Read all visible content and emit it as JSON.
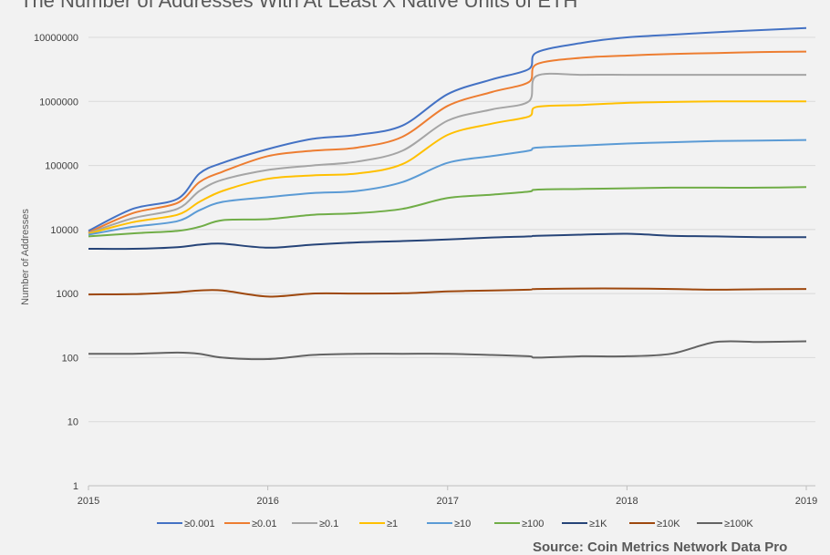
{
  "chart_data": {
    "type": "line",
    "title": "The Number of Addresses With At Least X Native Units of ETH",
    "ylabel": "Number of Addresses",
    "xlabel": "",
    "y_scale": "log",
    "ylim": [
      1,
      10000000
    ],
    "y_ticks": [
      "1",
      "10",
      "100",
      "1000",
      "10000",
      "100000",
      "1000000",
      "10000000"
    ],
    "xlim": [
      "2015-01-01",
      "2019-01-01"
    ],
    "x_ticks": [
      "2015",
      "2016",
      "2017",
      "2018",
      "2019"
    ],
    "legend_position": "bottom",
    "grid": true,
    "x": [
      "2015-01-01",
      "2015-04-01",
      "2015-07-01",
      "2015-08-15",
      "2015-10-01",
      "2016-01-01",
      "2016-04-01",
      "2016-07-01",
      "2016-10-01",
      "2017-01-01",
      "2017-04-01",
      "2017-06-15",
      "2017-07-01",
      "2017-10-01",
      "2018-01-01",
      "2018-04-01",
      "2018-07-01",
      "2018-10-01",
      "2019-01-01"
    ],
    "series": [
      {
        "name": "≥0.001",
        "color": "#4472c4",
        "values": [
          9500,
          21000,
          30000,
          75000,
          110000,
          180000,
          260000,
          300000,
          420000,
          1300000,
          2200000,
          3200000,
          5800000,
          8200000,
          10000000,
          11000000,
          12000000,
          13000000,
          14000000
        ]
      },
      {
        "name": "≥0.01",
        "color": "#ed7d31",
        "values": [
          9000,
          18000,
          26000,
          55000,
          80000,
          140000,
          170000,
          190000,
          280000,
          850000,
          1400000,
          2000000,
          3800000,
          4800000,
          5200000,
          5500000,
          5700000,
          5900000,
          6000000
        ]
      },
      {
        "name": "≥0.1",
        "color": "#a5a5a5",
        "values": [
          8800,
          15000,
          21000,
          40000,
          60000,
          85000,
          100000,
          115000,
          170000,
          500000,
          750000,
          1000000,
          2500000,
          2600000,
          2600000,
          2600000,
          2600000,
          2600000,
          2600000
        ]
      },
      {
        "name": "≥1",
        "color": "#ffc000",
        "values": [
          8600,
          13000,
          17000,
          27000,
          40000,
          62000,
          70000,
          75000,
          105000,
          300000,
          450000,
          580000,
          820000,
          880000,
          950000,
          980000,
          1000000,
          1000000,
          1000000
        ]
      },
      {
        "name": "≥10",
        "color": "#5b9bd5",
        "values": [
          8300,
          11000,
          13500,
          20000,
          27000,
          32000,
          37000,
          40000,
          55000,
          110000,
          140000,
          170000,
          190000,
          205000,
          220000,
          230000,
          240000,
          245000,
          250000
        ]
      },
      {
        "name": "≥100",
        "color": "#70ad47",
        "values": [
          7800,
          8700,
          9500,
          11000,
          14000,
          14500,
          17000,
          18000,
          21000,
          31000,
          35000,
          39000,
          42000,
          43000,
          44000,
          45000,
          45000,
          45000,
          46000
        ]
      },
      {
        "name": "≥1K",
        "color": "#264478",
        "values": [
          5000,
          5000,
          5300,
          5800,
          6000,
          5200,
          5800,
          6300,
          6600,
          7000,
          7500,
          7800,
          8000,
          8300,
          8600,
          8000,
          7800,
          7600,
          7600
        ]
      },
      {
        "name": "≥10K",
        "color": "#9e480e",
        "values": [
          970,
          980,
          1050,
          1120,
          1120,
          900,
          1000,
          1000,
          1010,
          1080,
          1120,
          1150,
          1180,
          1200,
          1200,
          1180,
          1150,
          1170,
          1180
        ]
      },
      {
        "name": "≥100K",
        "color": "#636363",
        "values": [
          115,
          115,
          120,
          115,
          100,
          95,
          110,
          115,
          115,
          115,
          110,
          105,
          100,
          105,
          105,
          115,
          175,
          175,
          180
        ]
      }
    ],
    "source": "Source: Coin Metrics Network Data Pro"
  }
}
